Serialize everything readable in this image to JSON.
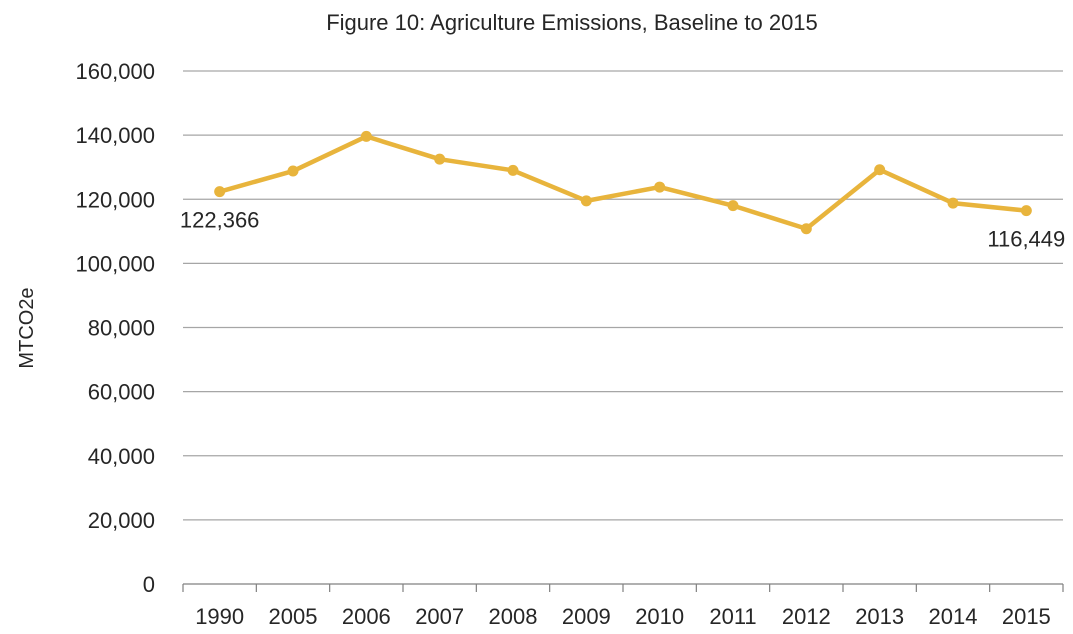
{
  "chart_data": {
    "type": "line",
    "title": "Figure 10: Agriculture Emissions, Baseline to 2015",
    "xlabel": "",
    "ylabel": "MTCO2e",
    "categories": [
      "1990",
      "2005",
      "2006",
      "2007",
      "2008",
      "2009",
      "2010",
      "2011",
      "2012",
      "2013",
      "2014",
      "2015"
    ],
    "series": [
      {
        "values": [
          122366,
          128800,
          139600,
          132500,
          129000,
          119500,
          123800,
          118000,
          110800,
          129200,
          118800,
          116449
        ],
        "color": "#E8B43C"
      }
    ],
    "ylim": [
      0,
      160000
    ],
    "yticks": [
      0,
      20000,
      40000,
      60000,
      80000,
      100000,
      120000,
      140000,
      160000
    ],
    "ytick_labels": [
      "0",
      "20,000",
      "40,000",
      "60,000",
      "80,000",
      "100,000",
      "120,000",
      "140,000",
      "160,000"
    ],
    "grid": true,
    "legend": "none",
    "data_labels": [
      {
        "index": 0,
        "text": "122,366"
      },
      {
        "index": 11,
        "text": "116,449"
      }
    ]
  }
}
